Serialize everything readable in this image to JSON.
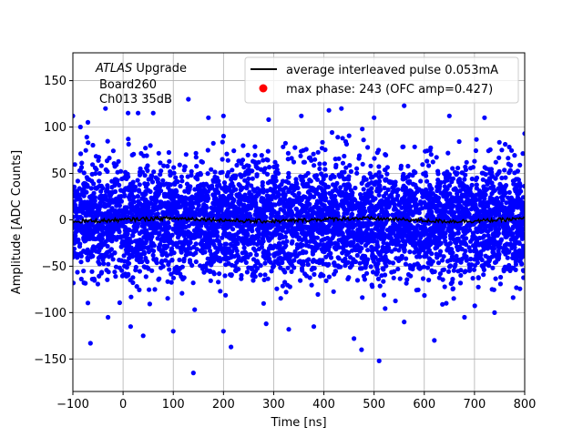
{
  "chart_data": {
    "type": "scatter",
    "title": "",
    "xlabel": "Time [ns]",
    "ylabel": "Amplitude [ADC Counts]",
    "xlim": [
      -100,
      800
    ],
    "ylim": [
      -185,
      180
    ],
    "xticks": [
      -100,
      0,
      100,
      200,
      300,
      400,
      500,
      600,
      700,
      800
    ],
    "yticks": [
      -150,
      -100,
      -50,
      0,
      50,
      100,
      150
    ],
    "grid": true,
    "legend_position": "top-right",
    "annotation": {
      "italic": "ATLAS",
      "line1_rest": " Upgrade",
      "line2": "Board260",
      "line3": "Ch013 35dB"
    },
    "series": [
      {
        "name": "average interleaved pulse 0.053mA",
        "kind": "line",
        "color": "#000000",
        "x_range": [
          -100,
          800
        ],
        "approx_value": 0,
        "noise_amplitude": 2
      },
      {
        "name": "max phase: 243 (OFC amp=0.427)",
        "kind": "marker",
        "color": "#ff0000",
        "points": []
      },
      {
        "name": "",
        "kind": "scatter",
        "color": "#0000ff",
        "description_stats": {
          "mean": 0,
          "std": 30,
          "x_range": [
            -100,
            800
          ]
        },
        "outliers": [
          [
            -100,
            112
          ],
          [
            -85,
            100
          ],
          [
            -70,
            105
          ],
          [
            -35,
            120
          ],
          [
            10,
            115
          ],
          [
            30,
            115
          ],
          [
            60,
            115
          ],
          [
            130,
            130
          ],
          [
            170,
            110
          ],
          [
            200,
            112
          ],
          [
            290,
            108
          ],
          [
            355,
            112
          ],
          [
            410,
            118
          ],
          [
            435,
            120
          ],
          [
            500,
            110
          ],
          [
            560,
            123
          ],
          [
            650,
            112
          ],
          [
            720,
            110
          ],
          [
            800,
            93
          ],
          [
            -65,
            -133
          ],
          [
            -30,
            -105
          ],
          [
            15,
            -115
          ],
          [
            40,
            -125
          ],
          [
            100,
            -120
          ],
          [
            140,
            -165
          ],
          [
            200,
            -120
          ],
          [
            215,
            -137
          ],
          [
            285,
            -112
          ],
          [
            330,
            -118
          ],
          [
            380,
            -115
          ],
          [
            460,
            -128
          ],
          [
            475,
            -140
          ],
          [
            510,
            -152
          ],
          [
            560,
            -110
          ],
          [
            620,
            -130
          ],
          [
            680,
            -105
          ],
          [
            740,
            -100
          ]
        ]
      }
    ]
  }
}
